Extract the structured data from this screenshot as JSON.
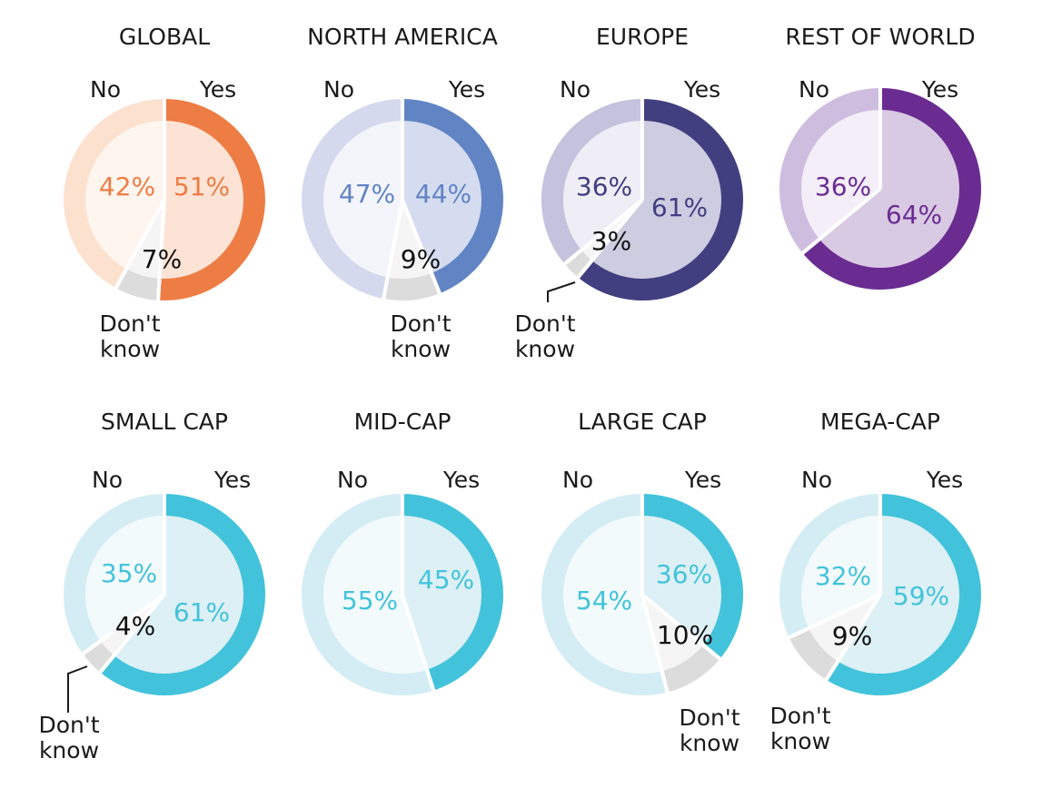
{
  "chart_data": [
    {
      "type": "pie",
      "title": "GLOBAL",
      "categories": [
        "Yes",
        "No",
        "Don't know"
      ],
      "values": [
        51,
        42,
        7
      ],
      "labels": {
        "yes": "Yes",
        "no": "No",
        "dk": "Don't know",
        "dk_lines": [
          "Don't",
          "know"
        ]
      },
      "value_labels": [
        "51%",
        "42%",
        "7%"
      ],
      "colors": {
        "outer": "#ED7D44",
        "inner": "#FCE3D5",
        "no_outer": "#FCE1CF",
        "no_inner": "#FEF5EF",
        "text": "#ED7D44",
        "dk_outer": "#DCDCDC",
        "dk_inner": "#F5F5F5"
      }
    },
    {
      "type": "pie",
      "title": "NORTH AMERICA",
      "categories": [
        "Yes",
        "No",
        "Don't know"
      ],
      "values": [
        44,
        47,
        9
      ],
      "labels": {
        "yes": "Yes",
        "no": "No",
        "dk": "Don't know",
        "dk_lines": [
          "Don't",
          "know"
        ]
      },
      "value_labels": [
        "44%",
        "47%",
        "9%"
      ],
      "colors": {
        "outer": "#6184C4",
        "inner": "#D6DCF0",
        "no_outer": "#D4D9EE",
        "no_inner": "#F4F5FB",
        "text": "#6184C4",
        "dk_outer": "#DCDCDC",
        "dk_inner": "#F5F5F5"
      }
    },
    {
      "type": "pie",
      "title": "EUROPE",
      "categories": [
        "Yes",
        "No",
        "Don't know"
      ],
      "values": [
        61,
        36,
        3
      ],
      "labels": {
        "yes": "Yes",
        "no": "No",
        "dk": "Don't know",
        "dk_lines": [
          "Don't",
          "know"
        ]
      },
      "value_labels": [
        "61%",
        "36%",
        "3%"
      ],
      "colors": {
        "outer": "#413F7F",
        "inner": "#CDCCE0",
        "no_outer": "#C5C2DD",
        "no_inner": "#EFEEF6",
        "text": "#413F7F",
        "dk_outer": "#DCDCDC",
        "dk_inner": "#F5F5F5"
      }
    },
    {
      "type": "pie",
      "title": "REST OF WORLD",
      "categories": [
        "Yes",
        "No"
      ],
      "values": [
        64,
        36
      ],
      "labels": {
        "yes": "Yes",
        "no": "No"
      },
      "value_labels": [
        "64%",
        "36%"
      ],
      "colors": {
        "outer": "#6A2C91",
        "inner": "#D9CAE3",
        "no_outer": "#CFBDE0",
        "no_inner": "#F3EEF7",
        "text": "#6A2C91"
      }
    },
    {
      "type": "pie",
      "title": "SMALL CAP",
      "categories": [
        "Yes",
        "No",
        "Don't know"
      ],
      "values": [
        61,
        35,
        4
      ],
      "labels": {
        "yes": "Yes",
        "no": "No",
        "dk": "Don't know",
        "dk_lines": [
          "Don't",
          "know"
        ]
      },
      "value_labels": [
        "61%",
        "35%",
        "4%"
      ],
      "colors": {
        "outer": "#42C3DB",
        "inner": "#DDF0F5",
        "no_outer": "#D4EDF5",
        "no_inner": "#F3FAFC",
        "text": "#42C3DB",
        "dk_outer": "#DCDCDC",
        "dk_inner": "#F5F5F5"
      }
    },
    {
      "type": "pie",
      "title": "MID-CAP",
      "categories": [
        "Yes",
        "No"
      ],
      "values": [
        45,
        55
      ],
      "labels": {
        "yes": "Yes",
        "no": "No"
      },
      "value_labels": [
        "45%",
        "55%"
      ],
      "colors": {
        "outer": "#42C3DB",
        "inner": "#DDF0F5",
        "no_outer": "#D4EDF5",
        "no_inner": "#F3FAFC",
        "text": "#42C3DB"
      }
    },
    {
      "type": "pie",
      "title": "LARGE CAP",
      "categories": [
        "Yes",
        "No",
        "Don't know"
      ],
      "values": [
        36,
        54,
        10
      ],
      "labels": {
        "yes": "Yes",
        "no": "No",
        "dk": "Don't know",
        "dk_lines": [
          "Don't",
          "know"
        ]
      },
      "value_labels": [
        "36%",
        "54%",
        "10%"
      ],
      "colors": {
        "outer": "#42C3DB",
        "inner": "#DDF0F5",
        "no_outer": "#D4EDF5",
        "no_inner": "#F3FAFC",
        "text": "#42C3DB",
        "dk_outer": "#DCDCDC",
        "dk_inner": "#F5F5F5"
      }
    },
    {
      "type": "pie",
      "title": "MEGA-CAP",
      "categories": [
        "Yes",
        "No",
        "Don't know"
      ],
      "values": [
        59,
        32,
        9
      ],
      "labels": {
        "yes": "Yes",
        "no": "No",
        "dk": "Don't know",
        "dk_lines": [
          "Don't",
          "know"
        ]
      },
      "value_labels": [
        "59%",
        "32%",
        "9%"
      ],
      "colors": {
        "outer": "#42C3DB",
        "inner": "#DDF0F5",
        "no_outer": "#D4EDF5",
        "no_inner": "#F3FAFC",
        "text": "#42C3DB",
        "dk_outer": "#DCDCDC",
        "dk_inner": "#F5F5F5"
      }
    }
  ]
}
